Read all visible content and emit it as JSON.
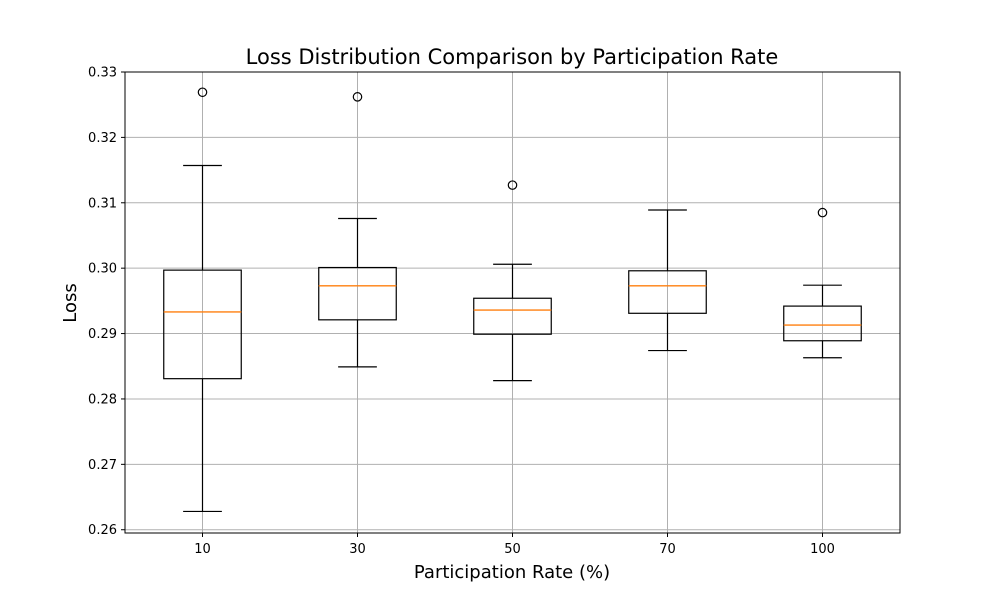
{
  "chart_data": {
    "type": "box",
    "title": "Loss Distribution Comparison by Participation Rate",
    "xlabel": "Participation Rate (%)",
    "ylabel": "Loss",
    "categories": [
      "10",
      "30",
      "50",
      "70",
      "100"
    ],
    "ylim": [
      0.2595,
      0.33
    ],
    "yticks": [
      "0.26",
      "0.27",
      "0.28",
      "0.29",
      "0.30",
      "0.31",
      "0.32",
      "0.33"
    ],
    "grid": true,
    "boxes": [
      {
        "category": "10",
        "whislo": 0.2628,
        "q1": 0.2831,
        "med": 0.2933,
        "q3": 0.2997,
        "whishi": 0.3157,
        "fliers": [
          0.3269
        ]
      },
      {
        "category": "30",
        "whislo": 0.2849,
        "q1": 0.2921,
        "med": 0.2973,
        "q3": 0.3001,
        "whishi": 0.3076,
        "fliers": [
          0.3262
        ]
      },
      {
        "category": "50",
        "whislo": 0.2828,
        "q1": 0.2899,
        "med": 0.2936,
        "q3": 0.2954,
        "whishi": 0.3006,
        "fliers": [
          0.3127
        ]
      },
      {
        "category": "70",
        "whislo": 0.2874,
        "q1": 0.2931,
        "med": 0.2973,
        "q3": 0.2996,
        "whishi": 0.3089,
        "fliers": []
      },
      {
        "category": "100",
        "whislo": 0.2863,
        "q1": 0.2889,
        "med": 0.2913,
        "q3": 0.2942,
        "whishi": 0.2974,
        "fliers": [
          0.3085
        ]
      }
    ],
    "colors": {
      "box": "#000000",
      "median": "#ff7f0e",
      "grid": "#b0b0b0"
    }
  }
}
